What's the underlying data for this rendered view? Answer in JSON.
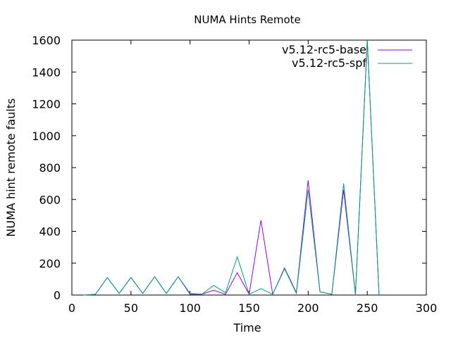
{
  "chart_data": {
    "type": "line",
    "title": "NUMA Hints Remote",
    "xlabel": "Time",
    "ylabel": "NUMA hint remote faults",
    "xlim": [
      0,
      300
    ],
    "ylim": [
      0,
      1600
    ],
    "xticks": [
      "0",
      "50",
      "100",
      "150",
      "200",
      "250",
      "300"
    ],
    "yticks": [
      "0",
      "200",
      "400",
      "600",
      "800",
      "1000",
      "1200",
      "1400",
      "1600"
    ],
    "grid": false,
    "legend_position": "top-right",
    "series": [
      {
        "name": "v5.12-rc5-base",
        "color": "#9400d3",
        "x": [
          10,
          20,
          30,
          40,
          50,
          60,
          70,
          80,
          90,
          100,
          110,
          120,
          130,
          140,
          150,
          160,
          170,
          180,
          190,
          200,
          210,
          220,
          230,
          240,
          250,
          260
        ],
        "y": [
          0,
          5,
          110,
          10,
          110,
          10,
          115,
          10,
          115,
          5,
          5,
          30,
          5,
          140,
          5,
          470,
          5,
          170,
          15,
          720,
          20,
          5,
          660,
          5,
          1600,
          0
        ]
      },
      {
        "name": "v5.12-rc5-spf",
        "color": "#009e73",
        "x": [
          10,
          20,
          30,
          40,
          50,
          60,
          70,
          80,
          90,
          100,
          110,
          120,
          130,
          140,
          150,
          160,
          170,
          180,
          190,
          200,
          210,
          220,
          230,
          240,
          250,
          260
        ],
        "y": [
          0,
          5,
          110,
          10,
          110,
          10,
          115,
          10,
          115,
          10,
          5,
          60,
          15,
          240,
          5,
          40,
          5,
          165,
          10,
          660,
          20,
          5,
          700,
          5,
          1600,
          0
        ]
      }
    ]
  }
}
